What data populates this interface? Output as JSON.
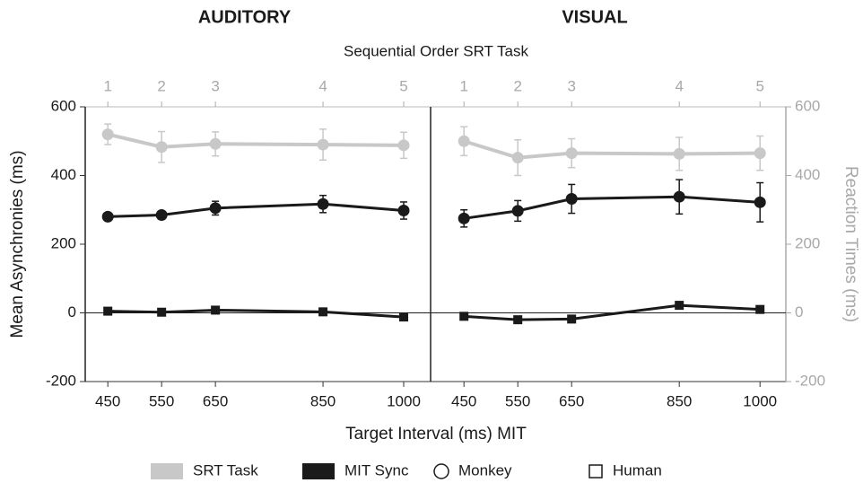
{
  "figure": {
    "top_axis_label": "Sequential Order SRT Task",
    "xlabel": "Target Interval (ms) MIT",
    "ylabel": "Mean Asynchronies (ms)",
    "y2label": "Reaction Times (ms)",
    "legend": [
      {
        "label": "SRT Task",
        "color": "#c8c8c8",
        "shape": "rect"
      },
      {
        "label": "MIT Sync",
        "color": "#1a1a1a",
        "shape": "rect"
      },
      {
        "label": "Monkey",
        "color": "#1a1a1a",
        "shape": "circle"
      },
      {
        "label": "Human",
        "color": "#1a1a1a",
        "shape": "square"
      }
    ]
  },
  "chart_data": [
    {
      "type": "line",
      "title": "AUDITORY",
      "x": [
        450,
        550,
        650,
        850,
        1000
      ],
      "xlim": [
        408,
        1050
      ],
      "xticks": [
        450,
        550,
        650,
        850,
        1000
      ],
      "top_ticks": [
        {
          "value": 450,
          "label": "1"
        },
        {
          "value": 550,
          "label": "2"
        },
        {
          "value": 650,
          "label": "3"
        },
        {
          "value": 850,
          "label": "4"
        },
        {
          "value": 1000,
          "label": "5"
        }
      ],
      "ylim": [
        -200,
        600
      ],
      "yticks": [
        -200,
        0,
        200,
        400,
        600
      ],
      "series": [
        {
          "color": "#c8c8c8",
          "marker": "circle",
          "axis": "y2",
          "values": [
            520,
            483,
            492,
            490,
            488
          ],
          "errors": [
            30,
            45,
            35,
            45,
            38
          ]
        },
        {
          "color": "#1a1a1a",
          "marker": "circle",
          "values": [
            280,
            285,
            305,
            317,
            298
          ],
          "errors": [
            8,
            8,
            20,
            25,
            25
          ]
        },
        {
          "color": "#1a1a1a",
          "marker": "square",
          "values": [
            5,
            2,
            8,
            3,
            -12
          ],
          "errors": [
            5,
            5,
            5,
            5,
            5
          ]
        }
      ]
    },
    {
      "type": "line",
      "title": "VISUAL",
      "x": [
        450,
        550,
        650,
        850,
        1000
      ],
      "xlim": [
        388,
        1048
      ],
      "xticks": [
        450,
        550,
        650,
        850,
        1000
      ],
      "top_ticks": [
        {
          "value": 450,
          "label": "1"
        },
        {
          "value": 550,
          "label": "2"
        },
        {
          "value": 650,
          "label": "3"
        },
        {
          "value": 850,
          "label": "4"
        },
        {
          "value": 1000,
          "label": "5"
        }
      ],
      "y2lim": [
        -200,
        600
      ],
      "y2ticks": [
        -200,
        0,
        200,
        400,
        600
      ],
      "series": [
        {
          "color": "#c8c8c8",
          "marker": "circle",
          "axis": "y2",
          "values": [
            500,
            452,
            465,
            463,
            465
          ],
          "errors": [
            42,
            52,
            42,
            48,
            50
          ]
        },
        {
          "color": "#1a1a1a",
          "marker": "circle",
          "values": [
            275,
            297,
            332,
            338,
            322
          ],
          "errors": [
            25,
            30,
            42,
            50,
            57
          ]
        },
        {
          "color": "#1a1a1a",
          "marker": "square",
          "values": [
            -10,
            -20,
            -18,
            22,
            10
          ],
          "errors": [
            5,
            5,
            5,
            5,
            10
          ]
        }
      ]
    }
  ]
}
